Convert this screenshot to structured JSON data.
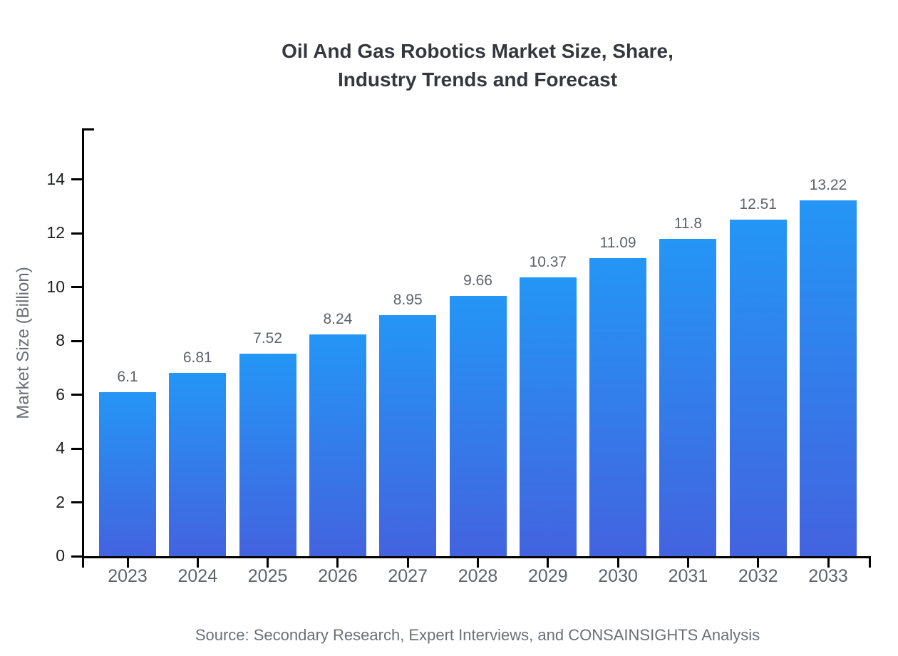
{
  "title": {
    "line1": "Oil And Gas Robotics Market Size, Share,",
    "line2": "Industry Trends and Forecast"
  },
  "source_note": "Source: Secondary Research, Expert Interviews, and CONSAINSIGHTS Analysis",
  "chart_data": {
    "type": "bar",
    "title": "Oil And Gas Robotics Market Size, Share, Industry Trends and Forecast",
    "categories": [
      "2023",
      "2024",
      "2025",
      "2026",
      "2027",
      "2028",
      "2029",
      "2030",
      "2031",
      "2032",
      "2033"
    ],
    "values": [
      6.1,
      6.81,
      7.52,
      8.24,
      8.95,
      9.66,
      10.37,
      11.09,
      11.8,
      12.51,
      13.22
    ],
    "value_labels": [
      "6.1",
      "6.81",
      "7.52",
      "8.24",
      "8.95",
      "9.66",
      "10.37",
      "11.09",
      "11.8",
      "12.51",
      "13.22"
    ],
    "xlabel": "",
    "ylabel": "Market Size (Billion)",
    "ylim": [
      0,
      15.9
    ],
    "yticks": [
      0,
      2,
      4,
      6,
      8,
      10,
      12,
      14
    ],
    "grid": false,
    "legend": false,
    "bar_color_top": "#2496f5",
    "bar_color_bottom": "#4363df",
    "axis_color": "#000000",
    "y_tick_label_color": "#1d1e20",
    "category_label_color": "#5f6368",
    "value_label_color": "#5f6368"
  }
}
